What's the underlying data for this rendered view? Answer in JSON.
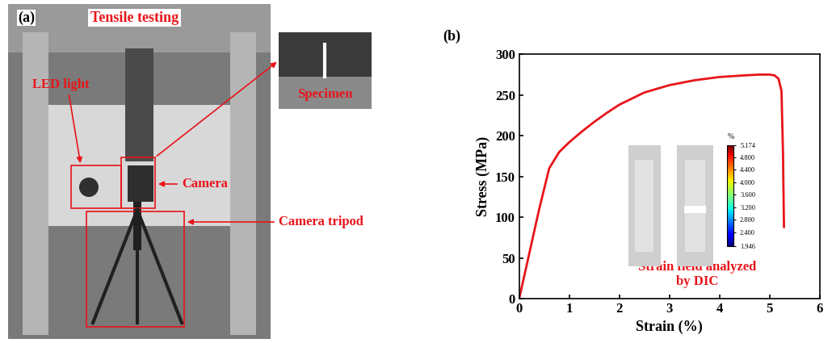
{
  "panel_a": {
    "label": "(a)",
    "title": "Tensile testing",
    "callouts": {
      "led": "LED light",
      "specimen": "Specimen",
      "camera": "Camera",
      "tripod": "Camera tripod"
    }
  },
  "chart_data": {
    "type": "line",
    "title": "(b)",
    "x": [
      0,
      0.2,
      0.4,
      0.6,
      0.8,
      1.0,
      1.25,
      1.5,
      1.75,
      2.0,
      2.5,
      3.0,
      3.5,
      4.0,
      4.5,
      4.8,
      5.0,
      5.1,
      5.18,
      5.24,
      5.27,
      5.29
    ],
    "values": [
      0,
      55,
      110,
      160,
      180,
      192,
      205,
      217,
      228,
      238,
      253,
      262,
      268,
      272,
      274,
      275,
      275,
      274,
      270,
      255,
      180,
      88
    ],
    "color": "#e8141a",
    "x_label": "Strain (%)",
    "y_label": "Stress (MPa)",
    "xlim": [
      0,
      6
    ],
    "xticks": [
      0,
      1,
      2,
      3,
      4,
      5,
      6
    ],
    "ylim": [
      0,
      300
    ],
    "yticks": [
      0,
      50,
      100,
      150,
      200,
      250,
      300
    ],
    "annotation": "Strain field analyzed\nby DIC",
    "colorbar": {
      "label": "%",
      "range": [
        1.946,
        5.174
      ],
      "ticks": [
        1.946,
        {
          "value": 2.4,
          "label": "2.400"
        },
        {
          "value": 2.8,
          "label": "2.800"
        },
        {
          "value": 3.2,
          "label": "3.200"
        },
        {
          "value": 3.6,
          "label": "3.600"
        },
        {
          "value": 4.0,
          "label": "4.000"
        },
        {
          "value": 4.4,
          "label": "4.400"
        },
        {
          "value": 4.8,
          "label": "4.800"
        },
        5.174
      ]
    }
  }
}
